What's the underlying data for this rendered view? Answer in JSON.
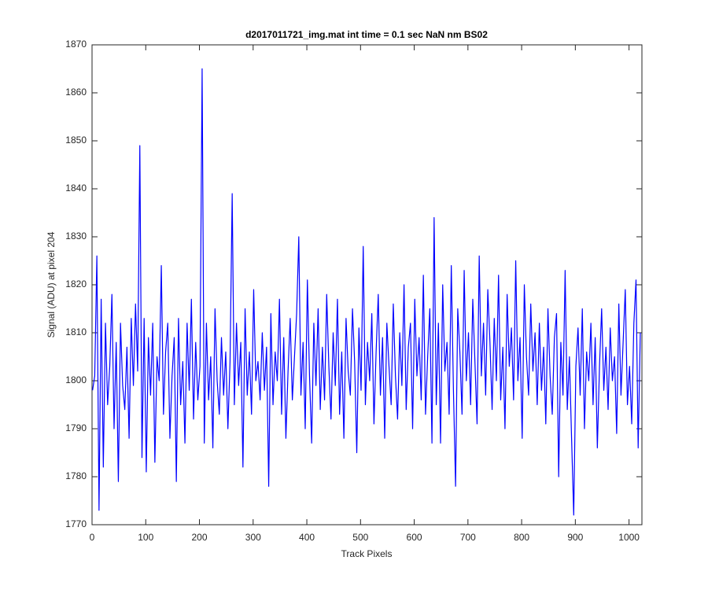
{
  "chart_data": {
    "type": "line",
    "title": "d2017011721_img.mat int time = 0.1 sec  NaN nm BS02",
    "x_label": "Track Pixels",
    "y_label": "Signal (ADU) at pixel 204",
    "xlim": [
      0,
      1024
    ],
    "xticks": [
      0,
      100,
      200,
      300,
      400,
      500,
      600,
      700,
      800,
      900,
      1000
    ],
    "ylim": [
      1770,
      1870
    ],
    "yticks": [
      1770,
      1780,
      1790,
      1800,
      1810,
      1820,
      1830,
      1840,
      1850,
      1860,
      1870
    ],
    "grid": false,
    "x": [
      1,
      5,
      9,
      13,
      17,
      21,
      25,
      29,
      33,
      37,
      41,
      45,
      49,
      53,
      57,
      61,
      65,
      69,
      73,
      77,
      81,
      85,
      89,
      93,
      97,
      101,
      105,
      109,
      113,
      117,
      121,
      125,
      129,
      133,
      137,
      141,
      145,
      149,
      153,
      157,
      161,
      165,
      169,
      173,
      177,
      181,
      185,
      189,
      193,
      197,
      201,
      205,
      209,
      213,
      217,
      221,
      225,
      229,
      233,
      237,
      241,
      245,
      249,
      253,
      257,
      261,
      265,
      269,
      273,
      277,
      281,
      285,
      289,
      293,
      297,
      301,
      305,
      309,
      313,
      317,
      321,
      325,
      329,
      333,
      337,
      341,
      345,
      349,
      353,
      357,
      361,
      365,
      369,
      373,
      377,
      381,
      385,
      389,
      393,
      397,
      401,
      405,
      409,
      413,
      417,
      421,
      425,
      429,
      433,
      437,
      441,
      445,
      449,
      453,
      457,
      461,
      465,
      469,
      473,
      477,
      481,
      485,
      489,
      493,
      497,
      501,
      505,
      509,
      513,
      517,
      521,
      525,
      529,
      533,
      537,
      541,
      545,
      549,
      553,
      557,
      561,
      565,
      569,
      573,
      577,
      581,
      585,
      589,
      593,
      597,
      601,
      605,
      609,
      613,
      617,
      621,
      625,
      629,
      633,
      637,
      641,
      645,
      649,
      653,
      657,
      661,
      665,
      669,
      673,
      677,
      681,
      685,
      689,
      693,
      697,
      701,
      705,
      709,
      713,
      717,
      721,
      725,
      729,
      733,
      737,
      741,
      745,
      749,
      753,
      757,
      761,
      765,
      769,
      773,
      777,
      781,
      785,
      789,
      793,
      797,
      801,
      805,
      809,
      813,
      817,
      821,
      825,
      829,
      833,
      837,
      841,
      845,
      849,
      853,
      857,
      861,
      865,
      869,
      873,
      877,
      881,
      885,
      889,
      893,
      897,
      901,
      905,
      909,
      913,
      917,
      921,
      925,
      929,
      933,
      937,
      941,
      945,
      949,
      953,
      957,
      961,
      965,
      969,
      973,
      977,
      981,
      985,
      989,
      993,
      997,
      1001,
      1005,
      1009,
      1013,
      1017,
      1021
    ],
    "series": [
      {
        "color": "#0000ff",
        "values": [
          1798,
          1801,
          1826,
          1773,
          1817,
          1782,
          1812,
          1795,
          1803,
          1818,
          1790,
          1808,
          1779,
          1812,
          1799,
          1794,
          1807,
          1788,
          1813,
          1799,
          1816,
          1802,
          1849,
          1784,
          1813,
          1781,
          1809,
          1797,
          1812,
          1783,
          1805,
          1800,
          1824,
          1793,
          1806,
          1812,
          1788,
          1801,
          1809,
          1779,
          1813,
          1795,
          1804,
          1787,
          1812,
          1798,
          1817,
          1792,
          1808,
          1796,
          1803,
          1865,
          1787,
          1812,
          1796,
          1805,
          1786,
          1815,
          1800,
          1793,
          1809,
          1797,
          1806,
          1790,
          1804,
          1839,
          1795,
          1812,
          1799,
          1808,
          1782,
          1815,
          1797,
          1806,
          1793,
          1819,
          1800,
          1804,
          1796,
          1810,
          1798,
          1807,
          1778,
          1814,
          1795,
          1806,
          1800,
          1817,
          1793,
          1809,
          1788,
          1802,
          1813,
          1796,
          1805,
          1814,
          1830,
          1797,
          1808,
          1790,
          1821,
          1801,
          1787,
          1812,
          1799,
          1815,
          1794,
          1807,
          1796,
          1818,
          1803,
          1792,
          1810,
          1799,
          1817,
          1793,
          1806,
          1788,
          1813,
          1802,
          1797,
          1815,
          1804,
          1785,
          1811,
          1798,
          1828,
          1795,
          1808,
          1800,
          1814,
          1791,
          1806,
          1818,
          1797,
          1809,
          1788,
          1812,
          1803,
          1795,
          1816,
          1801,
          1792,
          1810,
          1799,
          1820,
          1794,
          1807,
          1812,
          1790,
          1817,
          1801,
          1809,
          1796,
          1822,
          1793,
          1805,
          1815,
          1787,
          1834,
          1795,
          1812,
          1787,
          1820,
          1802,
          1808,
          1793,
          1824,
          1798,
          1778,
          1815,
          1806,
          1793,
          1823,
          1800,
          1810,
          1795,
          1817,
          1804,
          1791,
          1826,
          1801,
          1812,
          1797,
          1819,
          1808,
          1794,
          1813,
          1800,
          1822,
          1796,
          1807,
          1790,
          1818,
          1803,
          1811,
          1796,
          1825,
          1800,
          1809,
          1788,
          1820,
          1805,
          1797,
          1816,
          1802,
          1810,
          1795,
          1812,
          1798,
          1807,
          1791,
          1815,
          1801,
          1793,
          1809,
          1814,
          1780,
          1808,
          1797,
          1823,
          1794,
          1805,
          1788,
          1772,
          1803,
          1811,
          1797,
          1815,
          1790,
          1806,
          1800,
          1812,
          1795,
          1809,
          1786,
          1803,
          1815,
          1798,
          1807,
          1794,
          1811,
          1800,
          1805,
          1789,
          1816,
          1797,
          1808,
          1819,
          1795,
          1803,
          1791,
          1812,
          1821,
          1786,
          1810
        ]
      }
    ]
  }
}
